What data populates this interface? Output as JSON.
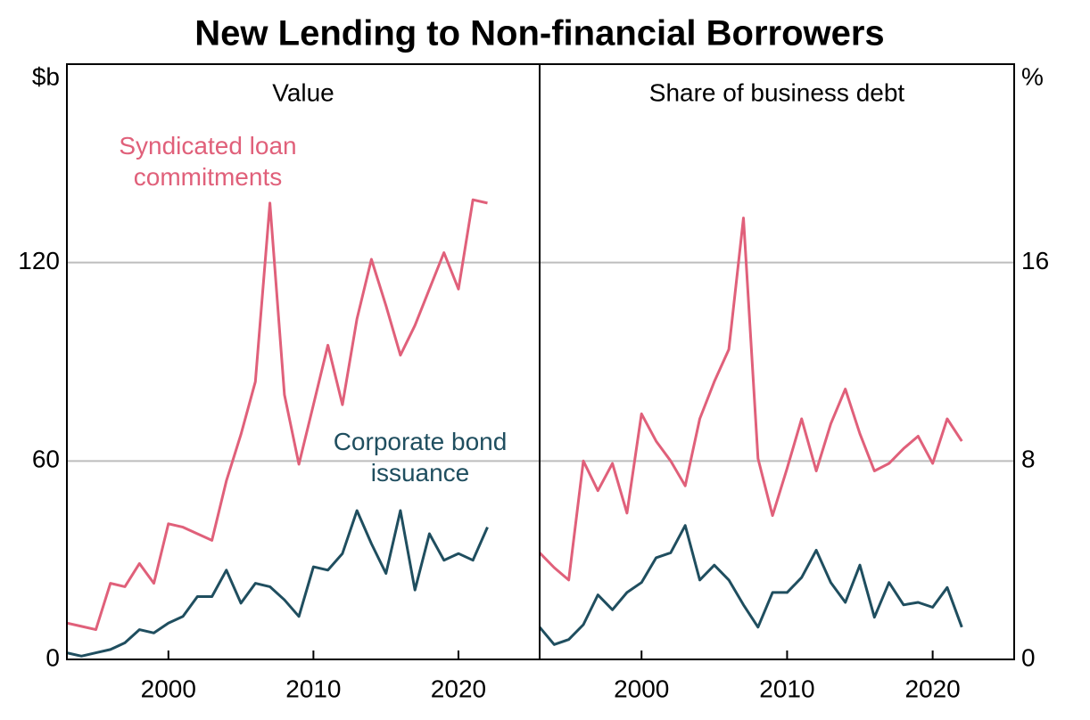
{
  "title": "New Lending to Non-financial Borrowers",
  "chart_data": [
    {
      "type": "line",
      "subtitle": "Value",
      "y_unit": "$b",
      "x": [
        1993,
        1994,
        1995,
        1996,
        1997,
        1998,
        1999,
        2000,
        2001,
        2002,
        2003,
        2004,
        2005,
        2006,
        2007,
        2008,
        2009,
        2010,
        2011,
        2012,
        2013,
        2014,
        2015,
        2016,
        2017,
        2018,
        2019,
        2020,
        2021,
        2022
      ],
      "series": [
        {
          "name": "Syndicated loan commitments",
          "color": "#e0607a",
          "values": [
            11,
            10,
            9,
            23,
            22,
            29,
            23,
            41,
            40,
            38,
            36,
            54,
            68,
            84,
            138,
            80,
            59,
            77,
            95,
            77,
            103,
            121,
            107,
            92,
            101,
            112,
            123,
            112,
            139,
            138
          ]
        },
        {
          "name": "Corporate bond issuance",
          "color": "#1f4e5f",
          "values": [
            2,
            1,
            2,
            3,
            5,
            9,
            8,
            11,
            13,
            19,
            19,
            27,
            17,
            23,
            22,
            18,
            13,
            28,
            27,
            32,
            45,
            35,
            26,
            45,
            21,
            38,
            30,
            32,
            30,
            40
          ]
        }
      ],
      "xlim": [
        1993,
        2025.6
      ],
      "xticks": [
        2000,
        2010,
        2020
      ],
      "ylim": [
        0,
        180
      ],
      "yticks": [
        0,
        60,
        120
      ],
      "grid": true,
      "y_axis_side": "left"
    },
    {
      "type": "line",
      "subtitle": "Share of business debt",
      "y_unit": "%",
      "x": [
        1993,
        1994,
        1995,
        1996,
        1997,
        1998,
        1999,
        2000,
        2001,
        2002,
        2003,
        2004,
        2005,
        2006,
        2007,
        2008,
        2009,
        2010,
        2011,
        2012,
        2013,
        2014,
        2015,
        2016,
        2017,
        2018,
        2019,
        2020,
        2021,
        2022
      ],
      "series": [
        {
          "color": "#e0607a",
          "values": [
            4.3,
            3.7,
            3.2,
            8.0,
            6.8,
            7.9,
            5.9,
            9.9,
            8.8,
            8.0,
            7.0,
            9.7,
            11.2,
            12.5,
            17.8,
            8.1,
            5.8,
            7.7,
            9.7,
            7.6,
            9.5,
            10.9,
            9.1,
            7.6,
            7.9,
            8.5,
            9.0,
            7.9,
            9.7,
            8.8
          ]
        },
        {
          "color": "#1f4e5f",
          "values": [
            1.3,
            0.6,
            0.8,
            1.4,
            2.6,
            2.0,
            2.7,
            3.1,
            4.1,
            4.3,
            5.4,
            3.2,
            3.8,
            3.2,
            2.2,
            1.3,
            2.7,
            2.7,
            3.3,
            4.4,
            3.1,
            2.3,
            3.8,
            1.7,
            3.1,
            2.2,
            2.3,
            2.1,
            2.9,
            1.3
          ]
        }
      ],
      "xlim": [
        1993,
        2025.6
      ],
      "xticks": [
        2000,
        2010,
        2020
      ],
      "ylim": [
        0,
        24
      ],
      "yticks": [
        0,
        8,
        16
      ],
      "grid": true,
      "y_axis_side": "right"
    }
  ]
}
